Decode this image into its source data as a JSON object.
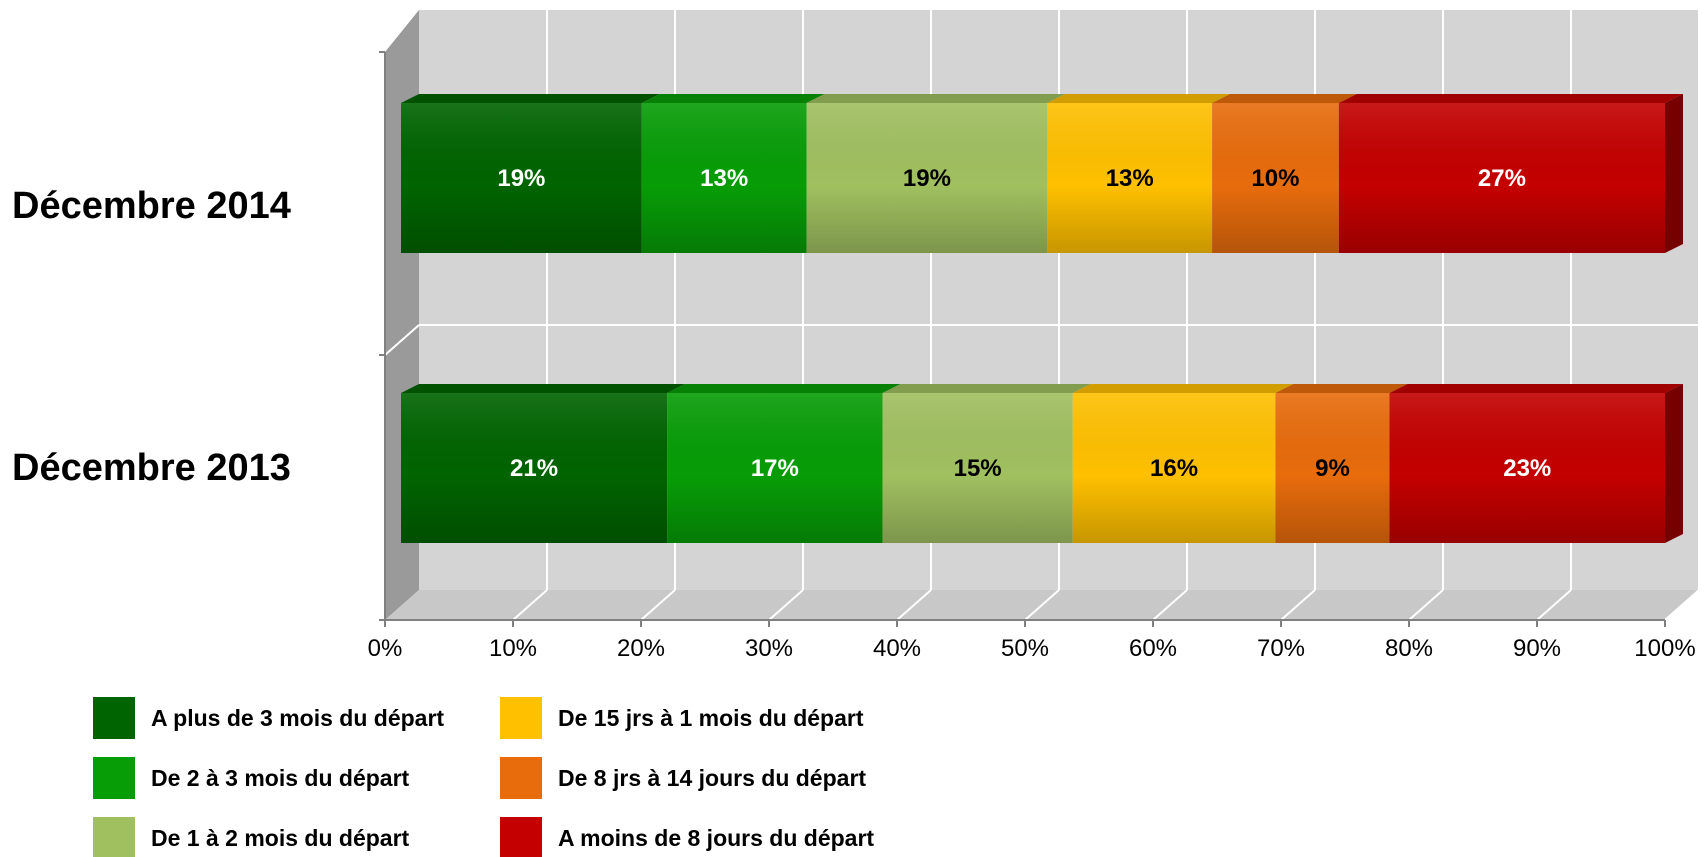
{
  "chart_data": {
    "type": "bar",
    "orientation": "horizontal",
    "stacked": true,
    "percent": true,
    "three_d": true,
    "categories": [
      "Décembre 2014",
      "Décembre 2013"
    ],
    "series": [
      {
        "name": "A plus de 3 mois du départ",
        "color": "#006400",
        "label_color": "#ffffff",
        "values": [
          19,
          21
        ],
        "labels": [
          "19%",
          "21%"
        ]
      },
      {
        "name": "De 2 à 3 mois du départ",
        "color": "#079d07",
        "label_color": "#ffffff",
        "values": [
          13,
          17
        ],
        "labels": [
          "13%",
          "17%"
        ]
      },
      {
        "name": "De 1 à 2 mois du départ",
        "color": "#a0c060",
        "label_color": "#000000",
        "values": [
          19,
          15
        ],
        "labels": [
          "19%",
          "15%"
        ]
      },
      {
        "name": "De 15 jrs à 1 mois du départ",
        "color": "#ffc000",
        "label_color": "#000000",
        "values": [
          13,
          16
        ],
        "labels": [
          "13%",
          "16%"
        ]
      },
      {
        "name": "De 8 jrs à 14 jours du départ",
        "color": "#e86c0c",
        "label_color": "#000000",
        "values": [
          10,
          9
        ],
        "labels": [
          "10%",
          "9%"
        ]
      },
      {
        "name": "A moins de 8 jours du départ",
        "color": "#c40000",
        "label_color": "#ffffff",
        "values": [
          27,
          23
        ],
        "labels": [
          "27%",
          "23%"
        ]
      }
    ],
    "xlim": [
      0,
      100
    ],
    "xticks": [
      "0%",
      "10%",
      "20%",
      "30%",
      "40%",
      "50%",
      "60%",
      "70%",
      "80%",
      "90%",
      "100%"
    ],
    "grid": true,
    "legend_position": "bottom-left",
    "colors": {
      "wall": "#d4d4d4",
      "side_wall": "#9a9a9a",
      "floor": "#c8c8c8",
      "grid": "#ffffff"
    }
  }
}
